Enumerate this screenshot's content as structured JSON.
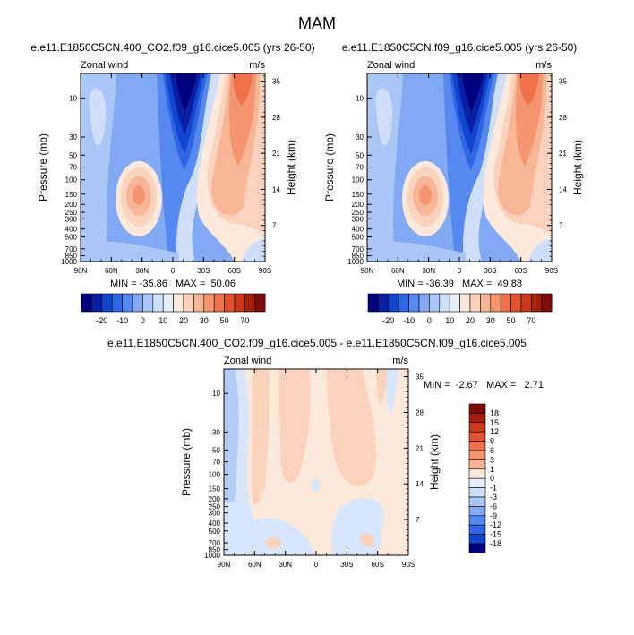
{
  "page_title": "MAM",
  "palette": {
    "blue_9": "#00007f",
    "blue_8": "#0a1fa8",
    "blue_7": "#1346cf",
    "blue_6": "#2e66e6",
    "blue_5": "#5589ef",
    "blue_4": "#82a9f3",
    "blue_3": "#aac6f6",
    "blue_2": "#cfdffa",
    "blue_1": "#e6effc",
    "red_1": "#fde9dc",
    "red_2": "#fbd3bd",
    "red_3": "#f8b697",
    "red_4": "#f59570",
    "red_5": "#f0724a",
    "red_6": "#e4522d",
    "red_7": "#cc3a1d",
    "red_8": "#a31f0e",
    "red_9": "#7f0a06"
  },
  "chart_data": [
    {
      "type": "heatmap",
      "title": "e.e11.E1850C5CN.400_CO2.f09_g16.cice5.005 (yrs 26-50)",
      "left_label": "Zonal wind",
      "right_label": "m/s",
      "xlabel": "",
      "ylabel": "Pressure (mb)",
      "y2label": "Height (km)",
      "x_ticks": [
        "90N",
        "60N",
        "30N",
        "0",
        "30S",
        "60S",
        "90S"
      ],
      "y_ticks": [
        "10",
        "30",
        "50",
        "70",
        "100",
        "150",
        "200",
        "250",
        "300",
        "400",
        "500",
        "700",
        "850",
        "1000"
      ],
      "y2_ticks": [
        "35",
        "28",
        "21",
        "14",
        "7"
      ],
      "ylim": [
        1000,
        5
      ],
      "stats": "MIN = -35.86   MAX =  50.06",
      "colorbar": [
        "-20",
        "-10",
        "0",
        "10",
        "20",
        "30",
        "50",
        "70"
      ]
    },
    {
      "type": "heatmap",
      "title": "e.e11.E1850C5CN.f09_g16.cice5.005 (yrs 26-50)",
      "left_label": "Zonal wind",
      "right_label": "m/s",
      "xlabel": "",
      "ylabel": "Pressure (mb)",
      "y2label": "Height (km)",
      "x_ticks": [
        "90N",
        "60N",
        "30N",
        "0",
        "30S",
        "60S",
        "90S"
      ],
      "y_ticks": [
        "10",
        "30",
        "50",
        "70",
        "100",
        "150",
        "200",
        "250",
        "300",
        "400",
        "500",
        "700",
        "850",
        "1000"
      ],
      "y2_ticks": [
        "35",
        "28",
        "21",
        "14",
        "7"
      ],
      "ylim": [
        1000,
        5
      ],
      "stats": "MIN = -36.39   MAX =  49.88",
      "colorbar": [
        "-20",
        "-10",
        "0",
        "10",
        "20",
        "30",
        "50",
        "70"
      ]
    },
    {
      "type": "heatmap",
      "title": "e.e11.E1850C5CN.400_CO2.f09_g16.cice5.005 - e.e11.E1850C5CN.f09_g16.cice5.005",
      "left_label": "Zonal wind",
      "right_label": "m/s",
      "xlabel": "",
      "ylabel": "Pressure (mb)",
      "y2label": "Height (km)",
      "x_ticks": [
        "90N",
        "60N",
        "30N",
        "0",
        "30S",
        "60S",
        "90S"
      ],
      "y_ticks": [
        "10",
        "30",
        "50",
        "70",
        "100",
        "150",
        "200",
        "250",
        "300",
        "400",
        "500",
        "700",
        "850",
        "1000"
      ],
      "y2_ticks": [
        "35",
        "28",
        "21",
        "14",
        "7"
      ],
      "ylim": [
        1000,
        5
      ],
      "stats": "MIN =  -2.67   MAX =   2.71",
      "colorbar": [
        "18",
        "15",
        "12",
        "9",
        "6",
        "3",
        "1",
        "0",
        "-1",
        "-3",
        "-6",
        "-9",
        "-12",
        "-15",
        "-18"
      ]
    }
  ]
}
